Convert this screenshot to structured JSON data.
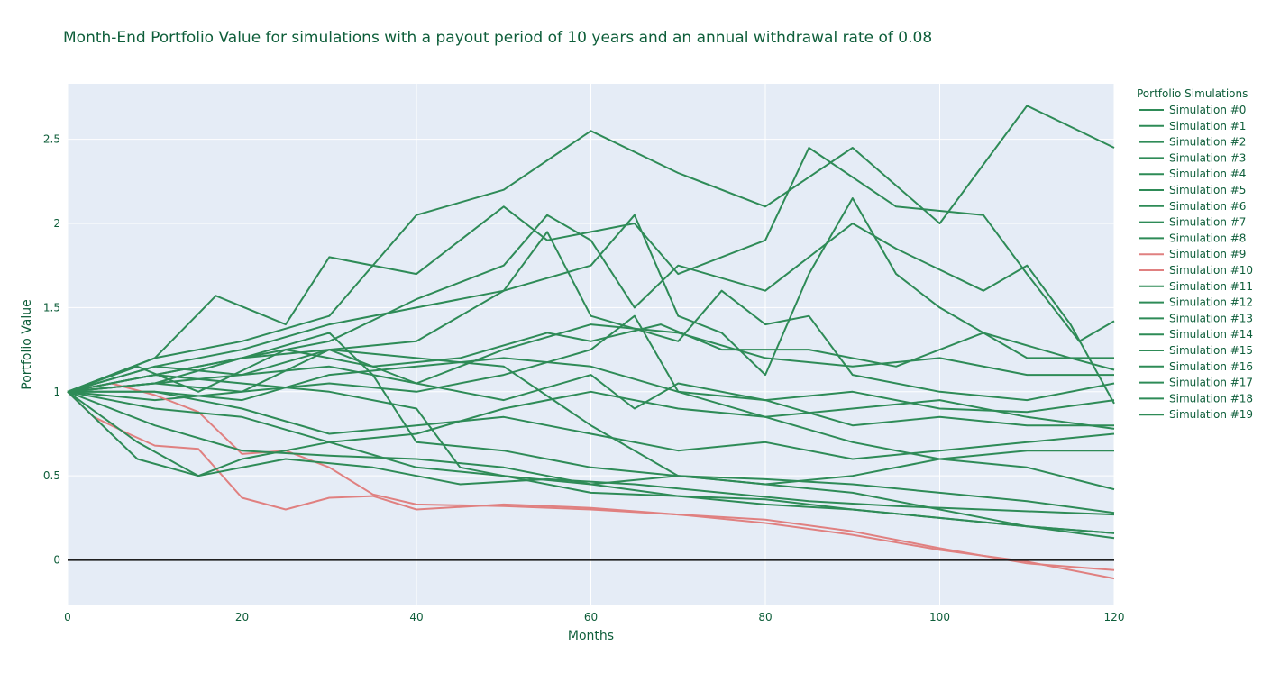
{
  "chart_data": {
    "type": "line",
    "title": "Month-End Portfolio Value for simulations with a payout period of 10 years and an annual withdrawal rate of 0.08",
    "xlabel": "Months",
    "ylabel": "Portfolio Value",
    "xlim": [
      0,
      120
    ],
    "ylim": [
      -0.27,
      2.83
    ],
    "x_ticks": [
      0,
      20,
      40,
      60,
      80,
      100,
      120
    ],
    "y_ticks": [
      0,
      0.5,
      1,
      1.5,
      2,
      2.5
    ],
    "x_tick_labels": [
      "0",
      "20",
      "40",
      "60",
      "80",
      "100",
      "120"
    ],
    "y_tick_labels": [
      "0",
      "0.5",
      "1",
      "1.5",
      "2",
      "2.5"
    ],
    "grid": true,
    "zero_line": true,
    "legend": {
      "title": "Portfolio Simulations",
      "position": "right"
    },
    "colors": {
      "survive": "#2e8b57",
      "deplete": "#e08080",
      "plot_bg": "#e5ecf6",
      "zero_line": "#1f1f1f",
      "text": "#0e5e3a"
    },
    "series": [
      {
        "name": "Simulation #0",
        "status": "survive",
        "points": [
          [
            0,
            1
          ],
          [
            10,
            1.2
          ],
          [
            20,
            1.3
          ],
          [
            30,
            1.45
          ],
          [
            40,
            2.05
          ],
          [
            50,
            2.2
          ],
          [
            60,
            2.55
          ],
          [
            70,
            2.3
          ],
          [
            80,
            2.1
          ],
          [
            90,
            2.45
          ],
          [
            100,
            2.0
          ],
          [
            110,
            2.7
          ],
          [
            120,
            2.45
          ]
        ]
      },
      {
        "name": "Simulation #1",
        "status": "survive",
        "points": [
          [
            0,
            1
          ],
          [
            10,
            1.2
          ],
          [
            17,
            1.57
          ],
          [
            25,
            1.4
          ],
          [
            30,
            1.8
          ],
          [
            40,
            1.7
          ],
          [
            50,
            2.1
          ],
          [
            55,
            1.9
          ],
          [
            65,
            2.0
          ],
          [
            70,
            1.7
          ],
          [
            80,
            1.9
          ],
          [
            85,
            2.45
          ],
          [
            95,
            2.1
          ],
          [
            105,
            2.05
          ],
          [
            110,
            1.7
          ],
          [
            116,
            1.3
          ],
          [
            120,
            1.42
          ]
        ]
      },
      {
        "name": "Simulation #2",
        "status": "survive",
        "points": [
          [
            0,
            1
          ],
          [
            10,
            1.1
          ],
          [
            20,
            1.2
          ],
          [
            30,
            1.3
          ],
          [
            40,
            1.55
          ],
          [
            50,
            1.75
          ],
          [
            55,
            2.05
          ],
          [
            60,
            1.9
          ],
          [
            65,
            1.5
          ],
          [
            70,
            1.75
          ],
          [
            80,
            1.6
          ],
          [
            90,
            2.0
          ],
          [
            95,
            1.85
          ],
          [
            105,
            1.6
          ],
          [
            110,
            1.75
          ],
          [
            115,
            1.4
          ],
          [
            120,
            0.93
          ]
        ]
      },
      {
        "name": "Simulation #3",
        "status": "survive",
        "points": [
          [
            0,
            1
          ],
          [
            10,
            1.15
          ],
          [
            20,
            1.25
          ],
          [
            30,
            1.4
          ],
          [
            40,
            1.5
          ],
          [
            50,
            1.6
          ],
          [
            60,
            1.75
          ],
          [
            65,
            2.05
          ],
          [
            70,
            1.45
          ],
          [
            75,
            1.35
          ],
          [
            80,
            1.1
          ],
          [
            85,
            1.7
          ],
          [
            90,
            2.15
          ],
          [
            95,
            1.7
          ],
          [
            100,
            1.5
          ],
          [
            110,
            1.2
          ],
          [
            120,
            1.2
          ]
        ]
      },
      {
        "name": "Simulation #4",
        "status": "survive",
        "points": [
          [
            0,
            1
          ],
          [
            10,
            1.05
          ],
          [
            20,
            1.2
          ],
          [
            30,
            1.25
          ],
          [
            40,
            1.3
          ],
          [
            50,
            1.6
          ],
          [
            55,
            1.95
          ],
          [
            60,
            1.45
          ],
          [
            70,
            1.3
          ],
          [
            75,
            1.6
          ],
          [
            80,
            1.4
          ],
          [
            85,
            1.45
          ],
          [
            90,
            1.1
          ],
          [
            100,
            1.0
          ],
          [
            110,
            0.95
          ],
          [
            120,
            1.05
          ]
        ]
      },
      {
        "name": "Simulation #5",
        "status": "survive",
        "points": [
          [
            0,
            1
          ],
          [
            8,
            1.15
          ],
          [
            15,
            1.0
          ],
          [
            25,
            1.25
          ],
          [
            35,
            1.15
          ],
          [
            45,
            1.2
          ],
          [
            55,
            1.35
          ],
          [
            60,
            1.3
          ],
          [
            68,
            1.4
          ],
          [
            75,
            1.25
          ],
          [
            85,
            1.25
          ],
          [
            95,
            1.15
          ],
          [
            105,
            1.35
          ],
          [
            115,
            1.2
          ],
          [
            120,
            1.13
          ]
        ]
      },
      {
        "name": "Simulation #6",
        "status": "survive",
        "points": [
          [
            0,
            1
          ],
          [
            10,
            0.95
          ],
          [
            20,
            1.0
          ],
          [
            30,
            1.05
          ],
          [
            40,
            1.0
          ],
          [
            50,
            1.1
          ],
          [
            60,
            1.25
          ],
          [
            65,
            1.45
          ],
          [
            70,
            1.0
          ],
          [
            80,
            0.95
          ],
          [
            90,
            1.0
          ],
          [
            100,
            0.9
          ],
          [
            110,
            0.88
          ],
          [
            120,
            0.95
          ]
        ]
      },
      {
        "name": "Simulation #7",
        "status": "survive",
        "points": [
          [
            0,
            1
          ],
          [
            10,
            1.05
          ],
          [
            20,
            1.0
          ],
          [
            30,
            1.25
          ],
          [
            40,
            1.05
          ],
          [
            50,
            0.95
          ],
          [
            60,
            1.1
          ],
          [
            65,
            0.9
          ],
          [
            70,
            1.05
          ],
          [
            80,
            0.95
          ],
          [
            90,
            0.8
          ],
          [
            100,
            0.85
          ],
          [
            110,
            0.8
          ],
          [
            120,
            0.8
          ]
        ]
      },
      {
        "name": "Simulation #8",
        "status": "survive",
        "points": [
          [
            0,
            1
          ],
          [
            10,
            1.0
          ],
          [
            20,
            0.9
          ],
          [
            30,
            0.75
          ],
          [
            40,
            0.8
          ],
          [
            50,
            0.85
          ],
          [
            60,
            0.75
          ],
          [
            70,
            0.65
          ],
          [
            80,
            0.7
          ],
          [
            90,
            0.6
          ],
          [
            100,
            0.65
          ],
          [
            110,
            0.7
          ],
          [
            120,
            0.75
          ]
        ]
      },
      {
        "name": "Simulation #9",
        "status": "deplete",
        "points": [
          [
            0,
            1
          ],
          [
            5,
            1.05
          ],
          [
            10,
            0.98
          ],
          [
            15,
            0.88
          ],
          [
            20,
            0.63
          ],
          [
            25,
            0.65
          ],
          [
            30,
            0.55
          ],
          [
            35,
            0.39
          ],
          [
            40,
            0.33
          ],
          [
            50,
            0.32
          ],
          [
            60,
            0.3
          ],
          [
            70,
            0.27
          ],
          [
            80,
            0.24
          ],
          [
            90,
            0.17
          ],
          [
            100,
            0.07
          ],
          [
            110,
            -0.02
          ],
          [
            120,
            -0.06
          ]
        ]
      },
      {
        "name": "Simulation #10",
        "status": "deplete",
        "points": [
          [
            0,
            1
          ],
          [
            3,
            0.85
          ],
          [
            7,
            0.75
          ],
          [
            10,
            0.68
          ],
          [
            15,
            0.66
          ],
          [
            20,
            0.37
          ],
          [
            25,
            0.3
          ],
          [
            30,
            0.37
          ],
          [
            35,
            0.38
          ],
          [
            40,
            0.3
          ],
          [
            50,
            0.33
          ],
          [
            60,
            0.31
          ],
          [
            70,
            0.27
          ],
          [
            80,
            0.22
          ],
          [
            90,
            0.15
          ],
          [
            100,
            0.06
          ],
          [
            110,
            -0.01
          ],
          [
            120,
            -0.11
          ]
        ]
      },
      {
        "name": "Simulation #11",
        "status": "survive",
        "points": [
          [
            0,
            1
          ],
          [
            8,
            0.6
          ],
          [
            15,
            0.5
          ],
          [
            20,
            0.6
          ],
          [
            30,
            0.7
          ],
          [
            40,
            0.55
          ],
          [
            50,
            0.5
          ],
          [
            60,
            0.45
          ],
          [
            70,
            0.5
          ],
          [
            80,
            0.48
          ],
          [
            90,
            0.45
          ],
          [
            100,
            0.4
          ],
          [
            110,
            0.35
          ],
          [
            120,
            0.28
          ]
        ]
      },
      {
        "name": "Simulation #12",
        "status": "survive",
        "points": [
          [
            0,
            1
          ],
          [
            8,
            0.7
          ],
          [
            15,
            0.5
          ],
          [
            25,
            0.6
          ],
          [
            35,
            0.55
          ],
          [
            45,
            0.45
          ],
          [
            55,
            0.48
          ],
          [
            65,
            0.45
          ],
          [
            75,
            0.4
          ],
          [
            85,
            0.35
          ],
          [
            95,
            0.32
          ],
          [
            105,
            0.3
          ],
          [
            115,
            0.28
          ],
          [
            120,
            0.27
          ]
        ]
      },
      {
        "name": "Simulation #13",
        "status": "survive",
        "points": [
          [
            0,
            1
          ],
          [
            10,
            0.8
          ],
          [
            20,
            0.65
          ],
          [
            30,
            0.62
          ],
          [
            40,
            0.6
          ],
          [
            50,
            0.55
          ],
          [
            60,
            0.45
          ],
          [
            70,
            0.38
          ],
          [
            80,
            0.33
          ],
          [
            90,
            0.3
          ],
          [
            100,
            0.25
          ],
          [
            110,
            0.2
          ],
          [
            120,
            0.16
          ]
        ]
      },
      {
        "name": "Simulation #14",
        "status": "survive",
        "points": [
          [
            0,
            1
          ],
          [
            10,
            1.1
          ],
          [
            20,
            1.2
          ],
          [
            30,
            1.35
          ],
          [
            35,
            1.1
          ],
          [
            40,
            0.7
          ],
          [
            50,
            0.65
          ],
          [
            60,
            0.55
          ],
          [
            70,
            0.5
          ],
          [
            80,
            0.45
          ],
          [
            90,
            0.4
          ],
          [
            100,
            0.3
          ],
          [
            110,
            0.2
          ],
          [
            120,
            0.13
          ]
        ]
      },
      {
        "name": "Simulation #15",
        "status": "survive",
        "points": [
          [
            0,
            1
          ],
          [
            10,
            1.1
          ],
          [
            20,
            1.05
          ],
          [
            30,
            1.0
          ],
          [
            40,
            0.9
          ],
          [
            45,
            0.55
          ],
          [
            50,
            0.5
          ],
          [
            60,
            0.4
          ],
          [
            70,
            0.38
          ],
          [
            80,
            0.36
          ],
          [
            90,
            0.3
          ],
          [
            100,
            0.25
          ],
          [
            110,
            0.2
          ],
          [
            120,
            0.16
          ]
        ]
      },
      {
        "name": "Simulation #16",
        "status": "survive",
        "points": [
          [
            0,
            1
          ],
          [
            10,
            1.15
          ],
          [
            20,
            1.1
          ],
          [
            30,
            1.25
          ],
          [
            40,
            1.2
          ],
          [
            50,
            1.15
          ],
          [
            60,
            0.8
          ],
          [
            70,
            0.5
          ],
          [
            80,
            0.45
          ],
          [
            90,
            0.5
          ],
          [
            100,
            0.6
          ],
          [
            110,
            0.65
          ],
          [
            120,
            0.65
          ]
        ]
      },
      {
        "name": "Simulation #17",
        "status": "survive",
        "points": [
          [
            0,
            1
          ],
          [
            10,
            1.0
          ],
          [
            20,
            0.95
          ],
          [
            30,
            1.1
          ],
          [
            40,
            1.15
          ],
          [
            50,
            1.2
          ],
          [
            60,
            1.15
          ],
          [
            70,
            1.0
          ],
          [
            80,
            0.85
          ],
          [
            90,
            0.7
          ],
          [
            100,
            0.6
          ],
          [
            110,
            0.55
          ],
          [
            120,
            0.42
          ]
        ]
      },
      {
        "name": "Simulation #18",
        "status": "survive",
        "points": [
          [
            0,
            1
          ],
          [
            10,
            1.05
          ],
          [
            20,
            1.1
          ],
          [
            30,
            1.15
          ],
          [
            40,
            1.05
          ],
          [
            50,
            1.25
          ],
          [
            60,
            1.4
          ],
          [
            70,
            1.35
          ],
          [
            80,
            1.2
          ],
          [
            90,
            1.15
          ],
          [
            100,
            1.2
          ],
          [
            110,
            1.1
          ],
          [
            120,
            1.1
          ]
        ]
      },
      {
        "name": "Simulation #19",
        "status": "survive",
        "points": [
          [
            0,
            1
          ],
          [
            10,
            0.9
          ],
          [
            20,
            0.85
          ],
          [
            30,
            0.7
          ],
          [
            40,
            0.75
          ],
          [
            50,
            0.9
          ],
          [
            60,
            1.0
          ],
          [
            70,
            0.9
          ],
          [
            80,
            0.85
          ],
          [
            90,
            0.9
          ],
          [
            100,
            0.95
          ],
          [
            110,
            0.85
          ],
          [
            120,
            0.78
          ]
        ]
      }
    ]
  }
}
